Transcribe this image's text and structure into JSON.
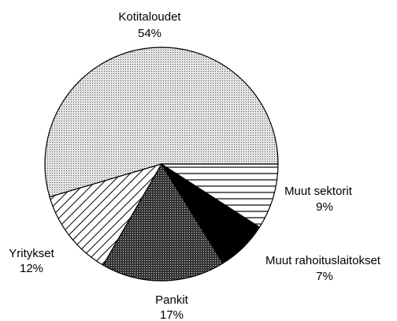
{
  "chart_data": {
    "type": "pie",
    "categories": [
      "Kotitaloudet",
      "Yritykset",
      "Pankit",
      "Muut rahoituslaitokset",
      "Muut sektorit"
    ],
    "values": [
      54,
      12,
      17,
      7,
      9
    ],
    "value_labels": [
      "54%",
      "12%",
      "17%",
      "7%",
      "9%"
    ],
    "colors": [
      "#d0d0d0",
      "#ffffff",
      "#4a4a4a",
      "#000000",
      "#ffffff"
    ],
    "patterns": [
      "dots",
      "diagonal",
      "dots-dense",
      "solid",
      "horizontal"
    ]
  }
}
